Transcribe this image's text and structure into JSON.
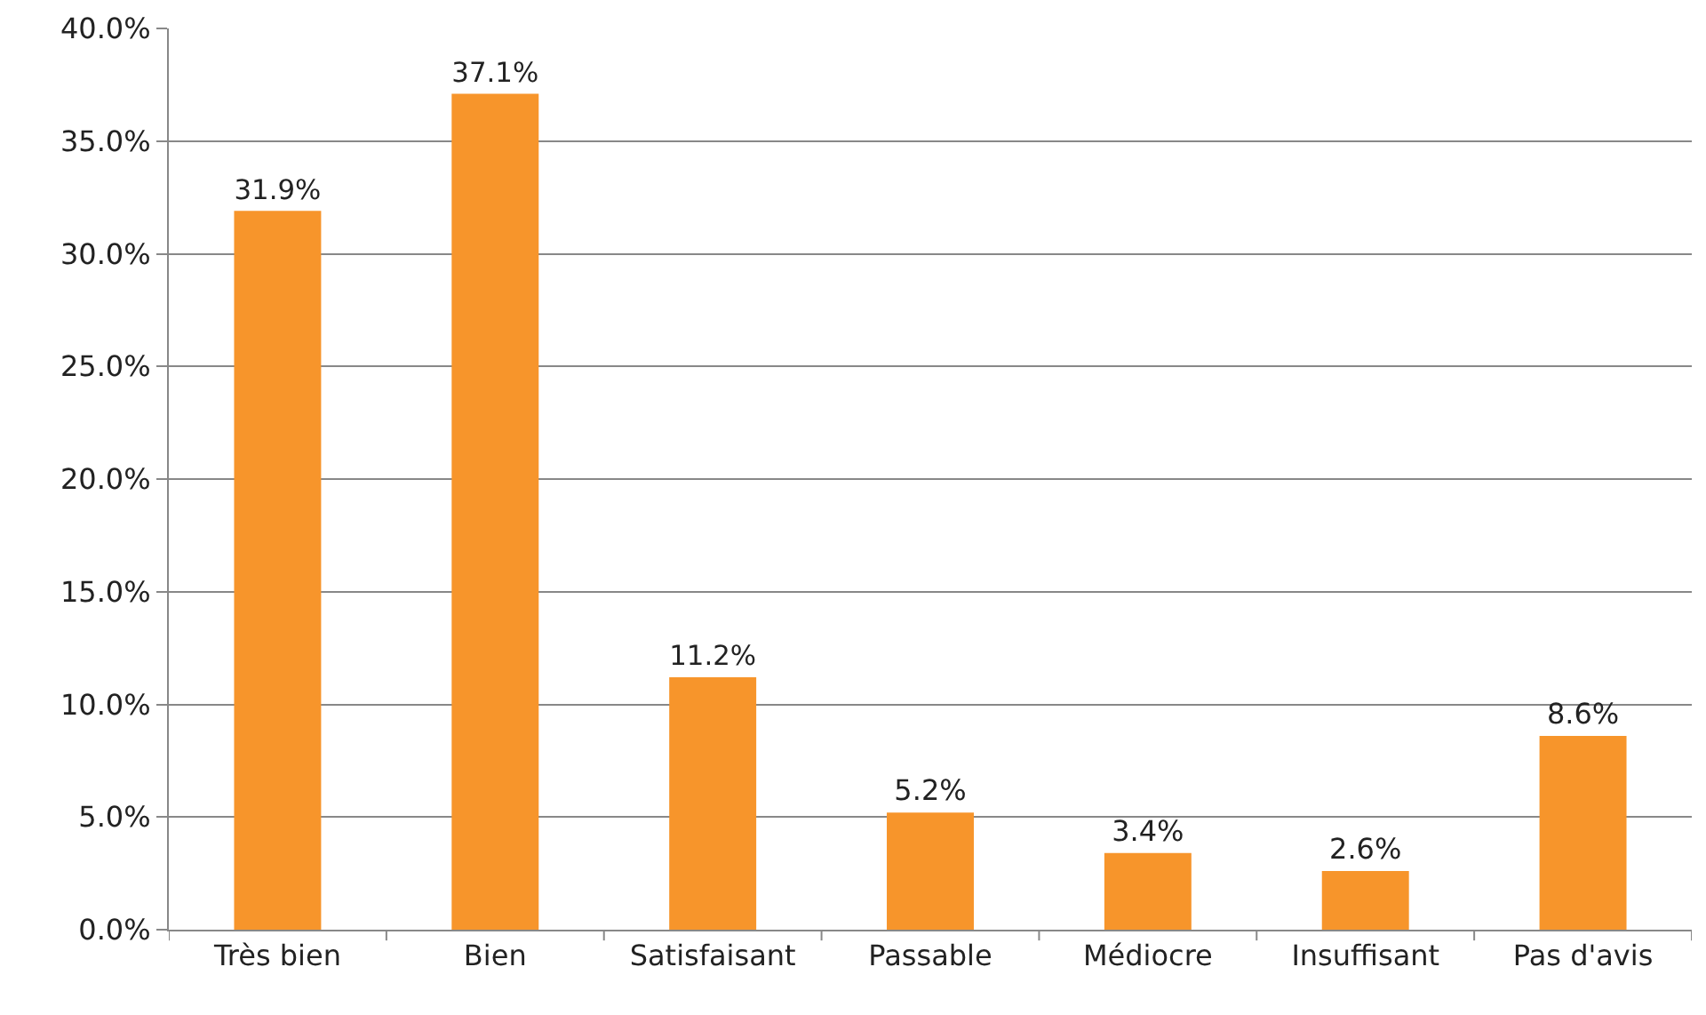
{
  "chart_data": {
    "type": "bar",
    "categories": [
      "Très bien",
      "Bien",
      "Satisfaisant",
      "Passable",
      "Médiocre",
      "Insuffisant",
      "Pas d'avis"
    ],
    "values": [
      31.9,
      37.1,
      11.2,
      5.2,
      3.4,
      2.6,
      8.6
    ],
    "value_labels": [
      "31.9%",
      "37.1%",
      "11.2%",
      "5.2%",
      "3.4%",
      "2.6%",
      "8.6%"
    ],
    "color": "#f7952b",
    "ylim": [
      0,
      40
    ],
    "yticks": [
      {
        "value": 0,
        "label": "0.0%"
      },
      {
        "value": 5,
        "label": "5.0%"
      },
      {
        "value": 10,
        "label": "10.0%"
      },
      {
        "value": 15,
        "label": "15.0%"
      },
      {
        "value": 20,
        "label": "20.0%"
      },
      {
        "value": 25,
        "label": "25.0%"
      },
      {
        "value": 30,
        "label": "30.0%"
      },
      {
        "value": 35,
        "label": "35.0%"
      },
      {
        "value": 40,
        "label": "40.0%"
      }
    ],
    "grid": "y"
  }
}
